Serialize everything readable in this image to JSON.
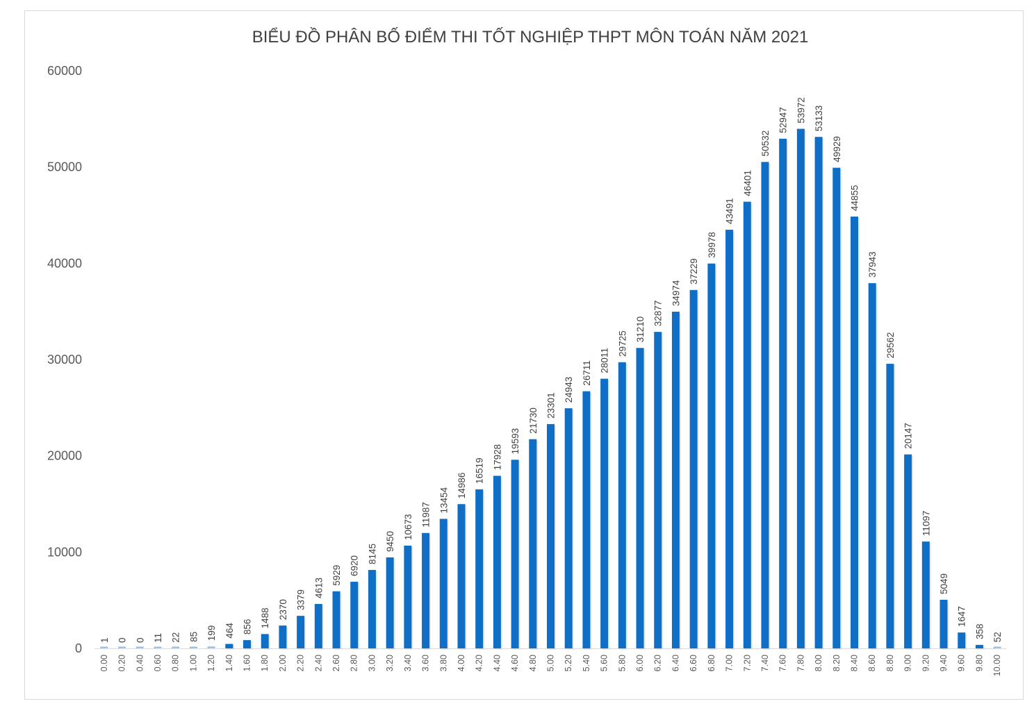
{
  "chart_data": {
    "type": "bar",
    "title": "BIỂU ĐỒ PHÂN BỐ ĐIỂM THI TỐT NGHIỆP THPT MÔN TOÁN NĂM 2021",
    "xlabel": "",
    "ylabel": "",
    "ylim": [
      0,
      60000
    ],
    "yticks": [
      "0",
      "10000",
      "20000",
      "30000",
      "40000",
      "50000",
      "60000"
    ],
    "grid": false,
    "legend": "none",
    "bar_color": "#0f6fc6",
    "categories": [
      "0.00",
      "0.20",
      "0.40",
      "0.60",
      "0.80",
      "1.00",
      "1.20",
      "1.40",
      "1.60",
      "1.80",
      "2.00",
      "2.20",
      "2.40",
      "2.60",
      "2.80",
      "3.00",
      "3.20",
      "3.40",
      "3.60",
      "3.80",
      "4.00",
      "4.20",
      "4.40",
      "4.60",
      "4.80",
      "5.00",
      "5.20",
      "5.40",
      "5.60",
      "5.80",
      "6.00",
      "6.20",
      "6.40",
      "6.60",
      "6.80",
      "7.00",
      "7.20",
      "7.40",
      "7.60",
      "7.80",
      "8.00",
      "8.20",
      "8.40",
      "8.60",
      "8.80",
      "9.00",
      "9.20",
      "9.40",
      "9.60",
      "9.80",
      "10.00"
    ],
    "values": [
      1,
      0,
      0,
      11,
      22,
      85,
      199,
      464,
      856,
      1488,
      2370,
      3379,
      4613,
      5929,
      6920,
      8145,
      9450,
      10673,
      11987,
      13454,
      14986,
      16519,
      17928,
      19593,
      21730,
      23301,
      24943,
      26711,
      28011,
      29725,
      31210,
      32877,
      34974,
      37229,
      39978,
      43491,
      46401,
      50532,
      52947,
      53972,
      53133,
      49929,
      44855,
      37943,
      29562,
      20147,
      11097,
      5049,
      1647,
      358,
      52
    ]
  }
}
